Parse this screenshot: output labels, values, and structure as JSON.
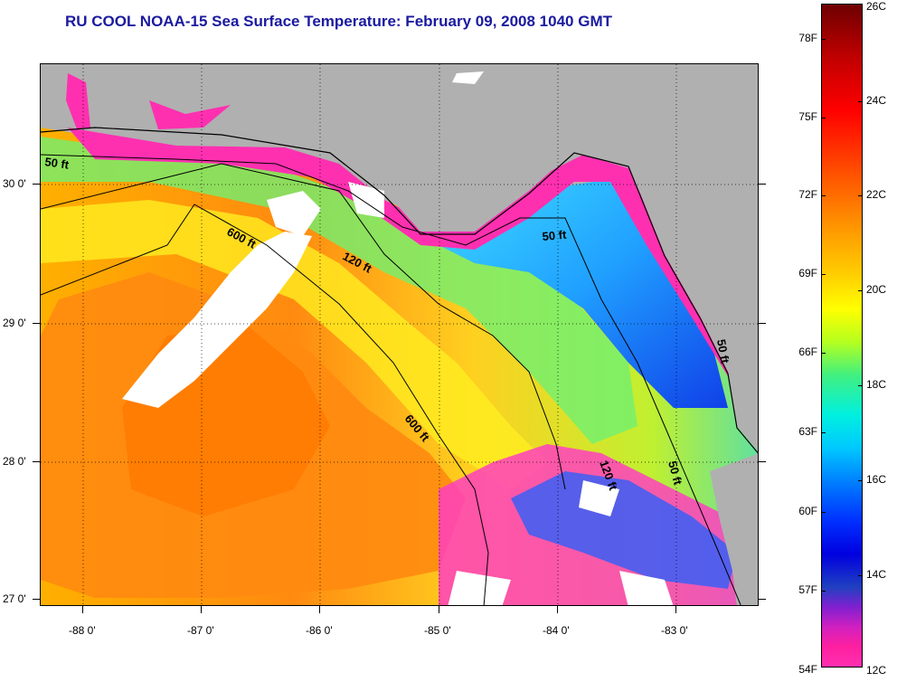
{
  "title": "RU COOL  NOAA-15  Sea Surface Temperature:  February 09, 2008 1040 GMT",
  "map": {
    "lat_labels": [
      "30 0'",
      "29 0'",
      "28 0'",
      "27 0'"
    ],
    "lon_labels": [
      "-88 0'",
      "-87 0'",
      "-86 0'",
      "-85 0'",
      "-84 0'",
      "-83 0'"
    ],
    "contour_labels": [
      "50 ft",
      "600 ft",
      "120 ft",
      "50 ft",
      "600 ft",
      "120 ft",
      "50 ft",
      "50 ft"
    ],
    "colors": {
      "land": "#b0b0b0",
      "cloud": "#ffffff",
      "coast": "#000000"
    }
  },
  "colorbar": {
    "celsius_labels": [
      "26C",
      "24C",
      "22C",
      "20C",
      "18C",
      "16C",
      "14C",
      "12C"
    ],
    "fahrenheit_labels": [
      "78F",
      "75F",
      "72F",
      "69F",
      "66F",
      "63F",
      "60F",
      "57F",
      "54F"
    ]
  }
}
